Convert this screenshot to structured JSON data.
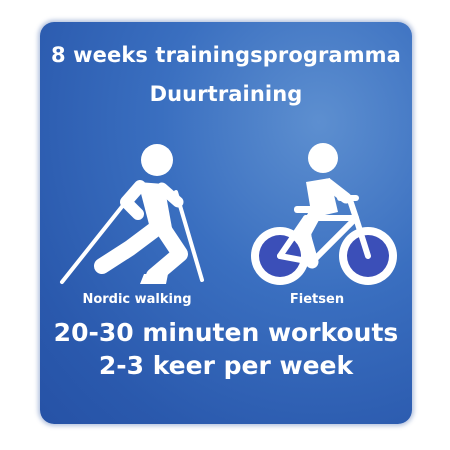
{
  "header": {
    "title_line1": "8 weeks trainingsprogramma",
    "title_line2": "Duurtraining"
  },
  "activities": [
    {
      "label": "Nordic walking",
      "icon": "nordic-walking-icon"
    },
    {
      "label": "Fietsen",
      "icon": "cycling-icon"
    }
  ],
  "footer": {
    "line1": "20-30 minuten workouts",
    "line2": "2-3 keer per week"
  },
  "colors": {
    "card_blue": "#2f63b5",
    "text": "#ffffff",
    "wheel_fill": "#3b4fb8"
  }
}
